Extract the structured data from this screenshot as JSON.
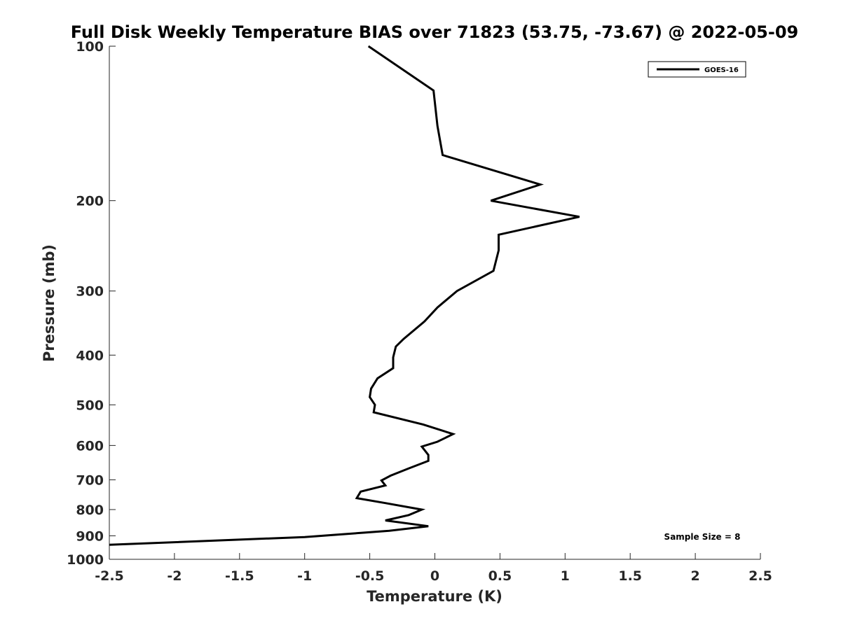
{
  "chart_data": {
    "type": "line",
    "title": "Full Disk Weekly Temperature BIAS over 71823 (53.75, -73.67) @ 2022-05-09",
    "xlabel": "Temperature (K)",
    "ylabel": "Pressure (mb)",
    "xlim": [
      -2.5,
      2.5
    ],
    "ylim": [
      100,
      1000
    ],
    "y_scale": "log",
    "y_reversed": true,
    "x_ticks": [
      "-2.5",
      "-2",
      "-1.5",
      "-1",
      "-0.5",
      "0",
      "0.5",
      "1",
      "1.5",
      "2",
      "2.5"
    ],
    "y_ticks": [
      "100",
      "200",
      "300",
      "400",
      "500",
      "600",
      "700",
      "800",
      "900",
      "1000"
    ],
    "grid": false,
    "legend_position": "top-right",
    "series": [
      {
        "name": "GOES-16",
        "color": "#000000",
        "points": [
          {
            "x": -0.51,
            "p": 100
          },
          {
            "x": -0.01,
            "p": 122
          },
          {
            "x": 0.02,
            "p": 143
          },
          {
            "x": 0.06,
            "p": 163
          },
          {
            "x": 0.81,
            "p": 186
          },
          {
            "x": 0.43,
            "p": 200
          },
          {
            "x": 1.11,
            "p": 215
          },
          {
            "x": 0.49,
            "p": 233
          },
          {
            "x": 0.49,
            "p": 250
          },
          {
            "x": 0.45,
            "p": 274
          },
          {
            "x": 0.17,
            "p": 300
          },
          {
            "x": 0.02,
            "p": 323
          },
          {
            "x": -0.08,
            "p": 344
          },
          {
            "x": -0.24,
            "p": 372
          },
          {
            "x": -0.3,
            "p": 385
          },
          {
            "x": -0.32,
            "p": 404
          },
          {
            "x": -0.32,
            "p": 424
          },
          {
            "x": -0.44,
            "p": 444
          },
          {
            "x": -0.49,
            "p": 465
          },
          {
            "x": -0.5,
            "p": 483
          },
          {
            "x": -0.46,
            "p": 500
          },
          {
            "x": -0.47,
            "p": 517
          },
          {
            "x": -0.09,
            "p": 546
          },
          {
            "x": 0.14,
            "p": 570
          },
          {
            "x": 0.02,
            "p": 590
          },
          {
            "x": -0.1,
            "p": 603
          },
          {
            "x": -0.05,
            "p": 626
          },
          {
            "x": -0.05,
            "p": 643
          },
          {
            "x": -0.2,
            "p": 665
          },
          {
            "x": -0.34,
            "p": 687
          },
          {
            "x": -0.41,
            "p": 702
          },
          {
            "x": -0.38,
            "p": 718
          },
          {
            "x": -0.57,
            "p": 738
          },
          {
            "x": -0.6,
            "p": 760
          },
          {
            "x": -0.38,
            "p": 777
          },
          {
            "x": -0.1,
            "p": 800
          },
          {
            "x": -0.2,
            "p": 820
          },
          {
            "x": -0.38,
            "p": 840
          },
          {
            "x": -0.05,
            "p": 862
          },
          {
            "x": -0.35,
            "p": 880
          },
          {
            "x": -1.0,
            "p": 905
          },
          {
            "x": -2.5,
            "p": 937
          }
        ]
      }
    ],
    "annotation": "Sample Size = 8"
  }
}
